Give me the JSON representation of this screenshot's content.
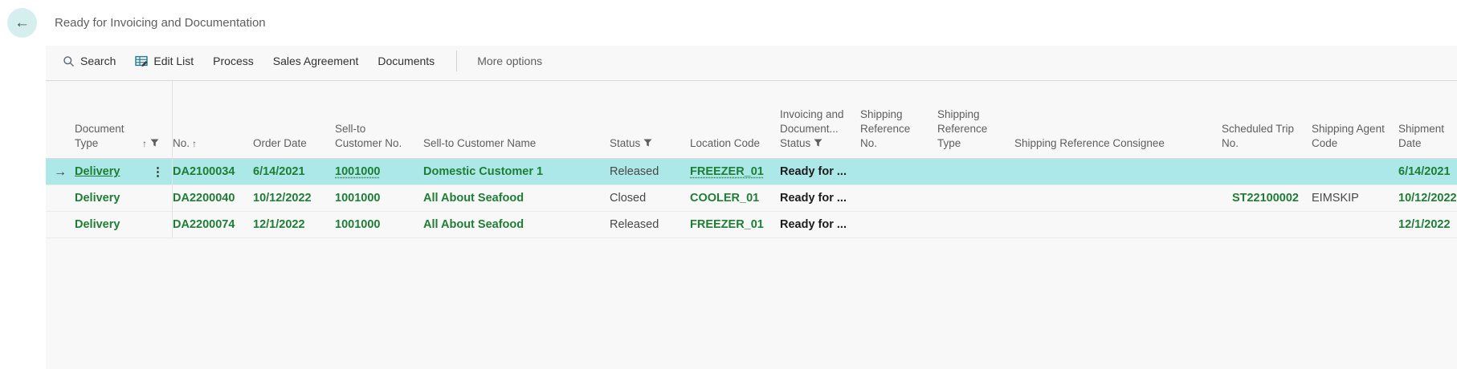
{
  "titlebar": {
    "title": "Ready for Invoicing and Documentation",
    "back_icon": "←"
  },
  "toolbar": {
    "search_label": "Search",
    "edit_list_label": "Edit List",
    "process_label": "Process",
    "sales_agreement_label": "Sales Agreement",
    "documents_label": "Documents",
    "more_options_label": "More options"
  },
  "table": {
    "columns": [
      {
        "key": "doc_type",
        "label": "Document Type",
        "sort": true,
        "filter": true
      },
      {
        "key": "no",
        "label": "No.",
        "sort": true,
        "filter": false
      },
      {
        "key": "order_date",
        "label": "Order Date",
        "sort": false,
        "filter": false
      },
      {
        "key": "sell_to_no",
        "label": "Sell-to Customer No.",
        "sort": false,
        "filter": false
      },
      {
        "key": "sell_to_name",
        "label": "Sell-to Customer Name",
        "sort": false,
        "filter": false
      },
      {
        "key": "status",
        "label": "Status",
        "sort": false,
        "filter": true
      },
      {
        "key": "location_code",
        "label": "Location Code",
        "sort": false,
        "filter": false
      },
      {
        "key": "inv_doc_status",
        "label": "Invoicing and Document... Status",
        "sort": false,
        "filter": true
      },
      {
        "key": "ship_ref_no",
        "label": "Shipping Reference No.",
        "sort": false,
        "filter": false
      },
      {
        "key": "ship_ref_type",
        "label": "Shipping Reference Type",
        "sort": false,
        "filter": false
      },
      {
        "key": "ship_ref_consignee",
        "label": "Shipping Reference Consignee",
        "sort": false,
        "filter": false
      },
      {
        "key": "scheduled_trip_no",
        "label": "Scheduled Trip No.",
        "sort": false,
        "filter": false
      },
      {
        "key": "shipping_agent_code",
        "label": "Shipping Agent Code",
        "sort": false,
        "filter": false
      },
      {
        "key": "shipment_date",
        "label": "Shipment Date",
        "sort": false,
        "filter": false
      }
    ],
    "rows": [
      {
        "selected": true,
        "doc_type": "Delivery",
        "no": "DA2100034",
        "order_date": "6/14/2021",
        "sell_to_no": "1001000",
        "sell_to_name": "Domestic Customer 1",
        "status": "Released",
        "location_code": "FREEZER_01",
        "inv_doc_status": "Ready for ...",
        "ship_ref_no": "",
        "ship_ref_type": "",
        "ship_ref_consignee": "",
        "scheduled_trip_no": "",
        "shipping_agent_code": "",
        "shipment_date": "6/14/2021"
      },
      {
        "selected": false,
        "doc_type": "Delivery",
        "no": "DA2200040",
        "order_date": "10/12/2022",
        "sell_to_no": "1001000",
        "sell_to_name": "All About Seafood",
        "status": "Closed",
        "location_code": "COOLER_01",
        "inv_doc_status": "Ready for ...",
        "ship_ref_no": "",
        "ship_ref_type": "",
        "ship_ref_consignee": "",
        "scheduled_trip_no": "ST22100002",
        "shipping_agent_code": "EIMSKIP",
        "shipment_date": "10/12/2022"
      },
      {
        "selected": false,
        "doc_type": "Delivery",
        "no": "DA2200074",
        "order_date": "12/1/2022",
        "sell_to_no": "1001000",
        "sell_to_name": "All About Seafood",
        "status": "Released",
        "location_code": "FREEZER_01",
        "inv_doc_status": "Ready for ...",
        "ship_ref_no": "",
        "ship_ref_type": "",
        "ship_ref_consignee": "",
        "scheduled_trip_no": "",
        "shipping_agent_code": "",
        "shipment_date": "12/1/2022"
      }
    ]
  },
  "icons": {
    "back": "arrow-left-icon",
    "search": "search-icon",
    "edit_list": "edit-list-icon",
    "filter": "filter-funnel-icon",
    "sort_ascending": "sort-ascending-icon",
    "current_row": "right-arrow-icon",
    "row_options": "vertical-ellipsis-icon"
  },
  "colors": {
    "value_green": "#1e7e34",
    "selected_row_bg": "#ace8e7",
    "back_circle_bg": "#d5efee",
    "header_text": "#605e5c",
    "panel_bg": "#f8f8f8",
    "icon_teal": "#1f7a93"
  }
}
